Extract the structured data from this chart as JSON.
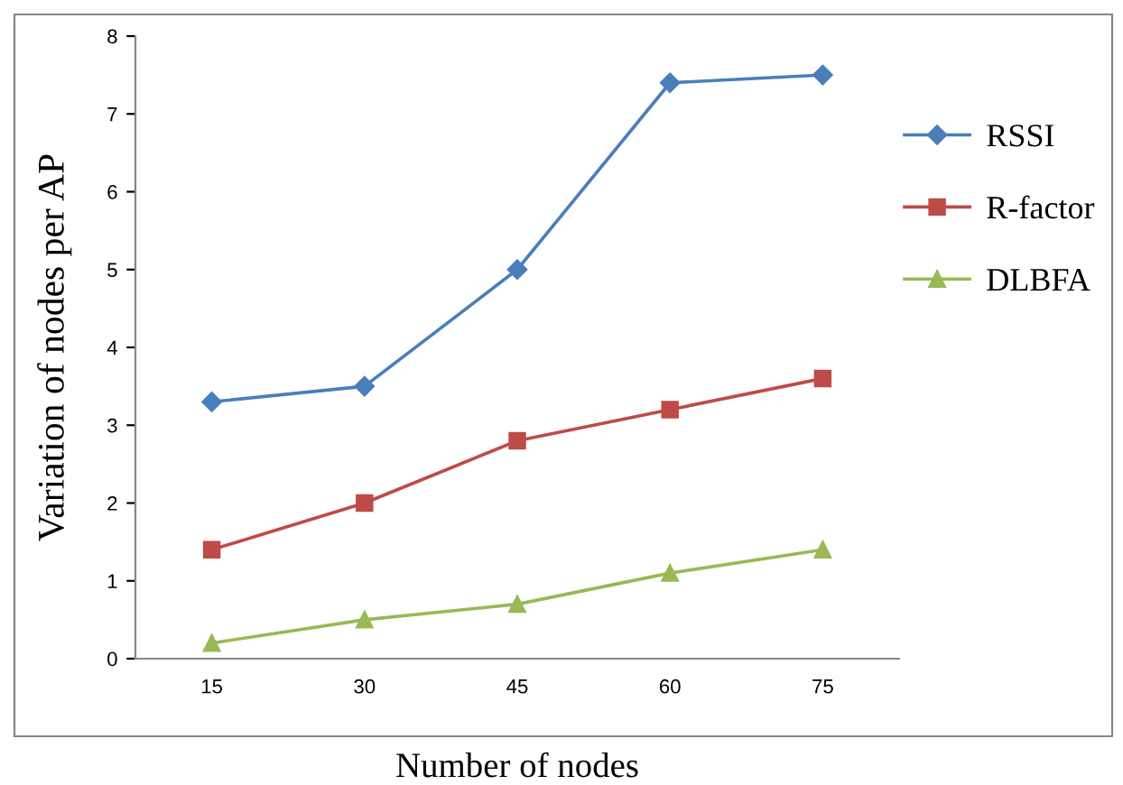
{
  "chart_data": {
    "type": "line",
    "xlabel": "Number of nodes",
    "ylabel": "Variation of nodes per AP",
    "categories": [
      "15",
      "30",
      "45",
      "60",
      "75"
    ],
    "series": [
      {
        "name": "RSSI",
        "color": "#4a7ebb",
        "marker": "diamond",
        "values": [
          3.3,
          3.5,
          5.0,
          7.4,
          7.5
        ]
      },
      {
        "name": "R-factor",
        "color": "#be4b48",
        "marker": "square",
        "values": [
          1.4,
          2.0,
          2.8,
          3.2,
          3.6
        ]
      },
      {
        "name": "DLBFA",
        "color": "#98b954",
        "marker": "triangle",
        "values": [
          0.2,
          0.5,
          0.7,
          1.1,
          1.4
        ]
      }
    ],
    "ylim": [
      0,
      8
    ],
    "yticks": [
      0,
      1,
      2,
      3,
      4,
      5,
      6,
      7,
      8
    ],
    "grid": false,
    "legend": "right",
    "line_style": "solid"
  }
}
